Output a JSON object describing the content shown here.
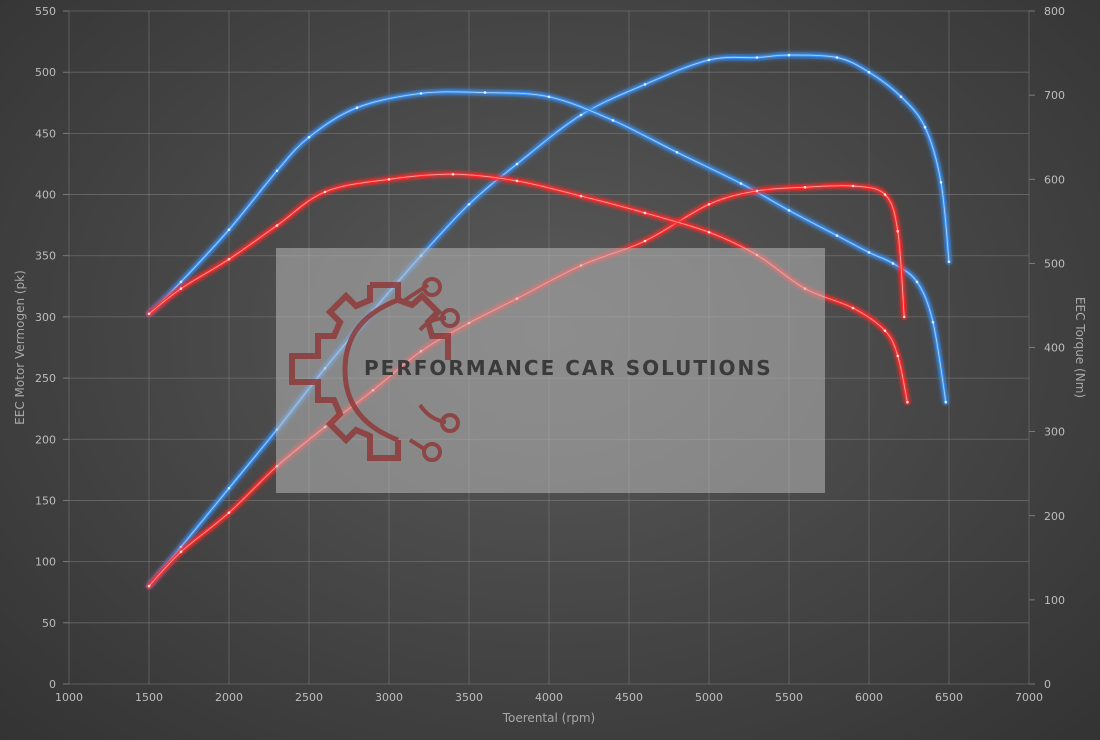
{
  "chart_data": {
    "type": "line",
    "xlabel": "Toerental (rpm)",
    "ylabel_left": "EEC Motor Vermogen (pk)",
    "ylabel_right": "EEC Torque (Nm)",
    "xlim": [
      1000,
      7000
    ],
    "ylim_left": [
      0,
      550
    ],
    "ylim_right": [
      0,
      800
    ],
    "x_ticks": [
      1000,
      1500,
      2000,
      2500,
      3000,
      3500,
      4000,
      4500,
      5000,
      5500,
      6000,
      6500,
      7000
    ],
    "y_ticks_left": [
      0,
      50,
      100,
      150,
      200,
      250,
      300,
      350,
      400,
      450,
      500,
      550
    ],
    "y_ticks_right": [
      0,
      100,
      200,
      300,
      400,
      500,
      600,
      700,
      800
    ],
    "grid": true,
    "series": [
      {
        "axis": "left",
        "color": "#3a8ff0",
        "x": [
          1500,
          1700,
          2000,
          2300,
          2600,
          2900,
          3200,
          3500,
          3800,
          4200,
          4600,
          5000,
          5300,
          5500,
          5800,
          6000,
          6200,
          6350,
          6450,
          6500
        ],
        "values": [
          80,
          112,
          160,
          208,
          258,
          305,
          350,
          392,
          425,
          465,
          490,
          510,
          512,
          514,
          512,
          500,
          480,
          455,
          410,
          345
        ]
      },
      {
        "axis": "right",
        "color": "#3a8ff0",
        "x": [
          1500,
          1700,
          2000,
          2300,
          2500,
          2800,
          3200,
          3600,
          4000,
          4400,
          4800,
          5200,
          5500,
          5800,
          6000,
          6150,
          6300,
          6400,
          6480
        ],
        "values": [
          440,
          478,
          540,
          610,
          650,
          685,
          702,
          703,
          698,
          670,
          632,
          595,
          563,
          533,
          513,
          500,
          478,
          430,
          335
        ]
      },
      {
        "axis": "left",
        "color": "#ff2a2a",
        "x": [
          1500,
          1700,
          2000,
          2300,
          2600,
          2900,
          3200,
          3500,
          3800,
          4200,
          4600,
          5000,
          5300,
          5600,
          5900,
          6100,
          6180,
          6220
        ],
        "values": [
          80,
          108,
          140,
          178,
          210,
          240,
          272,
          295,
          315,
          342,
          362,
          392,
          403,
          406,
          407,
          400,
          370,
          300
        ]
      },
      {
        "axis": "right",
        "color": "#ff2a2a",
        "x": [
          1500,
          1700,
          2000,
          2300,
          2600,
          3000,
          3400,
          3800,
          4200,
          4600,
          5000,
          5300,
          5600,
          5900,
          6100,
          6180,
          6240
        ],
        "values": [
          440,
          470,
          505,
          545,
          585,
          600,
          606,
          598,
          580,
          560,
          537,
          510,
          470,
          447,
          420,
          390,
          335
        ]
      }
    ]
  },
  "watermark": {
    "text": "PERFORMANCE CAR SOLUTIONS"
  }
}
